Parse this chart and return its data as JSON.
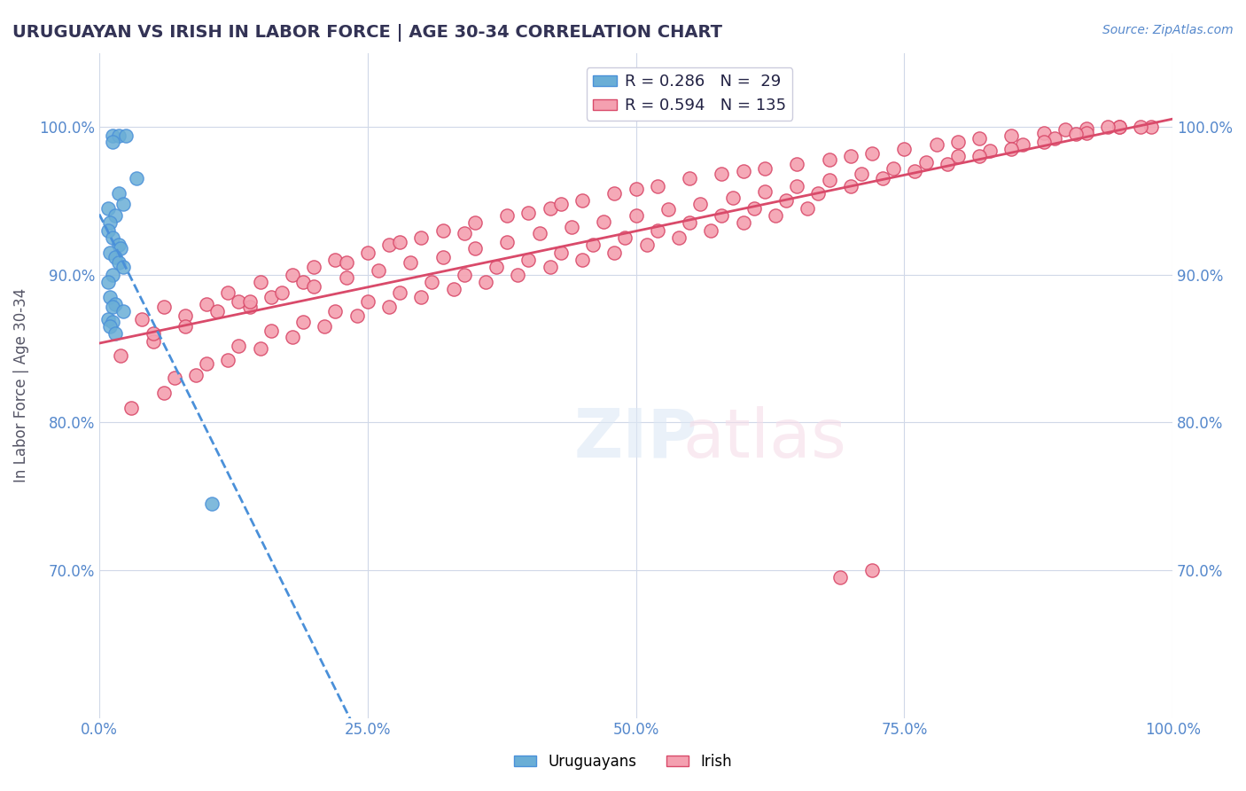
{
  "title": "URUGUAYAN VS IRISH IN LABOR FORCE | AGE 30-34 CORRELATION CHART",
  "source": "Source: ZipAtlas.com",
  "xlabel": "",
  "ylabel": "In Labor Force | Age 30-34",
  "watermark": "ZIPatlas",
  "legend_uruguayan": "R = 0.286   N =  29",
  "legend_irish": "R = 0.594   N = 135",
  "uruguayan_R": 0.286,
  "uruguayan_N": 29,
  "irish_R": 0.594,
  "irish_N": 135,
  "uruguayan_color": "#6aaed6",
  "irish_color": "#f4a0b0",
  "uruguayan_line_color": "#4a90d9",
  "irish_line_color": "#d94a6a",
  "bg_color": "#ffffff",
  "grid_color": "#d0d8e8",
  "title_color": "#333355",
  "axis_label_color": "#5588cc",
  "xlim": [
    0.0,
    1.0
  ],
  "ylim": [
    0.6,
    1.05
  ],
  "xticks": [
    0.0,
    0.25,
    0.5,
    0.75,
    1.0
  ],
  "yticks": [
    0.7,
    0.8,
    0.9,
    1.0
  ],
  "xtick_labels": [
    "0.0%",
    "25.0%",
    "50.0%",
    "75.0%",
    "100.0%"
  ],
  "ytick_labels": [
    "70.0%",
    "80.0%",
    "90.0%",
    "100.0%"
  ],
  "uruguayan_x": [
    0.012,
    0.018,
    0.025,
    0.012,
    0.035,
    0.018,
    0.022,
    0.008,
    0.015,
    0.01,
    0.008,
    0.012,
    0.018,
    0.02,
    0.01,
    0.015,
    0.018,
    0.022,
    0.012,
    0.008,
    0.01,
    0.105,
    0.015,
    0.012,
    0.022,
    0.008,
    0.012,
    0.01,
    0.015
  ],
  "uruguayan_y": [
    0.994,
    0.994,
    0.994,
    0.99,
    0.965,
    0.955,
    0.948,
    0.945,
    0.94,
    0.935,
    0.93,
    0.925,
    0.92,
    0.918,
    0.915,
    0.912,
    0.908,
    0.905,
    0.9,
    0.895,
    0.885,
    0.745,
    0.88,
    0.878,
    0.875,
    0.87,
    0.868,
    0.865,
    0.86
  ],
  "irish_x": [
    0.02,
    0.04,
    0.06,
    0.05,
    0.08,
    0.1,
    0.12,
    0.15,
    0.14,
    0.13,
    0.18,
    0.2,
    0.22,
    0.19,
    0.16,
    0.25,
    0.23,
    0.27,
    0.28,
    0.3,
    0.32,
    0.35,
    0.34,
    0.38,
    0.4,
    0.42,
    0.45,
    0.43,
    0.48,
    0.5,
    0.52,
    0.55,
    0.58,
    0.6,
    0.62,
    0.65,
    0.68,
    0.7,
    0.72,
    0.75,
    0.78,
    0.8,
    0.82,
    0.85,
    0.88,
    0.9,
    0.92,
    0.95,
    0.98,
    0.05,
    0.08,
    0.11,
    0.14,
    0.17,
    0.2,
    0.23,
    0.26,
    0.29,
    0.32,
    0.35,
    0.38,
    0.41,
    0.44,
    0.47,
    0.5,
    0.53,
    0.56,
    0.59,
    0.62,
    0.65,
    0.68,
    0.71,
    0.74,
    0.77,
    0.8,
    0.83,
    0.86,
    0.89,
    0.92,
    0.95,
    0.07,
    0.1,
    0.13,
    0.16,
    0.19,
    0.22,
    0.25,
    0.28,
    0.31,
    0.34,
    0.37,
    0.4,
    0.43,
    0.46,
    0.49,
    0.52,
    0.55,
    0.58,
    0.61,
    0.64,
    0.67,
    0.7,
    0.73,
    0.76,
    0.79,
    0.82,
    0.85,
    0.88,
    0.91,
    0.94,
    0.97,
    0.03,
    0.06,
    0.09,
    0.12,
    0.15,
    0.18,
    0.21,
    0.24,
    0.27,
    0.3,
    0.33,
    0.36,
    0.39,
    0.42,
    0.45,
    0.48,
    0.51,
    0.54,
    0.57,
    0.6,
    0.63,
    0.66,
    0.69,
    0.72
  ],
  "irish_y": [
    0.845,
    0.87,
    0.878,
    0.855,
    0.872,
    0.88,
    0.888,
    0.895,
    0.878,
    0.882,
    0.9,
    0.905,
    0.91,
    0.895,
    0.885,
    0.915,
    0.908,
    0.92,
    0.922,
    0.925,
    0.93,
    0.935,
    0.928,
    0.94,
    0.942,
    0.945,
    0.95,
    0.948,
    0.955,
    0.958,
    0.96,
    0.965,
    0.968,
    0.97,
    0.972,
    0.975,
    0.978,
    0.98,
    0.982,
    0.985,
    0.988,
    0.99,
    0.992,
    0.994,
    0.996,
    0.998,
    0.999,
    1.0,
    1.0,
    0.86,
    0.865,
    0.875,
    0.882,
    0.888,
    0.892,
    0.898,
    0.903,
    0.908,
    0.912,
    0.918,
    0.922,
    0.928,
    0.932,
    0.936,
    0.94,
    0.944,
    0.948,
    0.952,
    0.956,
    0.96,
    0.964,
    0.968,
    0.972,
    0.976,
    0.98,
    0.984,
    0.988,
    0.992,
    0.996,
    1.0,
    0.83,
    0.84,
    0.852,
    0.862,
    0.868,
    0.875,
    0.882,
    0.888,
    0.895,
    0.9,
    0.905,
    0.91,
    0.915,
    0.92,
    0.925,
    0.93,
    0.935,
    0.94,
    0.945,
    0.95,
    0.955,
    0.96,
    0.965,
    0.97,
    0.975,
    0.98,
    0.985,
    0.99,
    0.995,
    1.0,
    1.0,
    0.81,
    0.82,
    0.832,
    0.842,
    0.85,
    0.858,
    0.865,
    0.872,
    0.878,
    0.885,
    0.89,
    0.895,
    0.9,
    0.905,
    0.91,
    0.915,
    0.92,
    0.925,
    0.93,
    0.935,
    0.94,
    0.945,
    0.695,
    0.7
  ]
}
